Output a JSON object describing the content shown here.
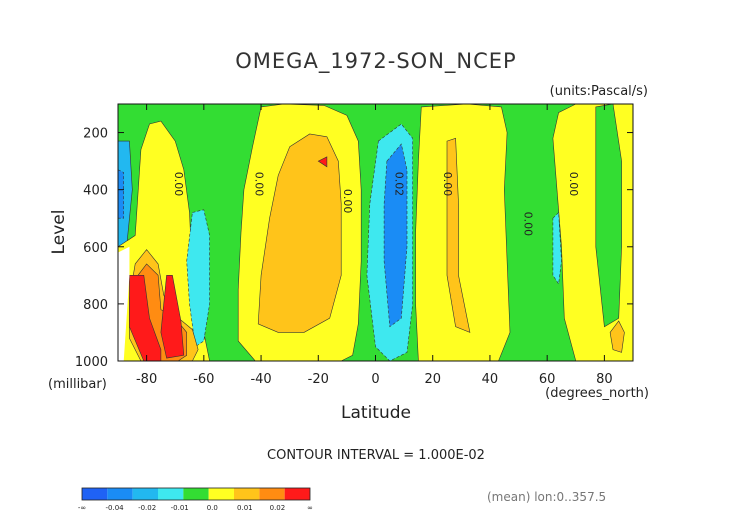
{
  "chart_data": {
    "type": "heatmap",
    "title": "OMEGA_1972-SON_NCEP",
    "units_note": "(units:Pascal/s)",
    "xlabel": "Latitude",
    "ylabel": "Level",
    "x_unit": "(degrees_north)",
    "y_unit": "(millibar)",
    "xlim": [
      -90,
      90
    ],
    "ylim": [
      1000,
      100
    ],
    "x_ticks": [
      -80,
      -60,
      -40,
      -20,
      0,
      20,
      40,
      60,
      80
    ],
    "y_ticks": [
      200,
      400,
      600,
      800,
      1000
    ],
    "contour_interval_text": "CONTOUR INTERVAL = 1.000E-02",
    "footnote": "(mean) lon:0..357.5",
    "colorbar": {
      "labels": [
        "-∞",
        "-0.04",
        "-0.02",
        "-0.01",
        "0.0",
        "0.01",
        "0.02",
        "∞"
      ],
      "colors": [
        "#1f62f5",
        "#1a8cf5",
        "#22b8f0",
        "#3ee8ef",
        "#33dd33",
        "#ffff22",
        "#ffc41a",
        "#ff8c12",
        "#ff1a1a"
      ]
    },
    "contour_labels": [
      {
        "text": "0.00",
        "lat": -70,
        "p": 380
      },
      {
        "text": "0.00",
        "lat": -42,
        "p": 380
      },
      {
        "text": "0.00",
        "lat": -11,
        "p": 440
      },
      {
        "text": "0.02",
        "lat": 7,
        "p": 380
      },
      {
        "text": "0.00",
        "lat": 24,
        "p": 380
      },
      {
        "text": "0.00",
        "lat": 52,
        "p": 520
      },
      {
        "text": "0.00",
        "lat": 68,
        "p": 380
      }
    ],
    "regions": [
      {
        "level": "-0.01",
        "color": "#22b8f0",
        "pts": [
          [
            -90,
            230
          ],
          [
            -86,
            230
          ],
          [
            -85,
            400
          ],
          [
            -87,
            600
          ],
          [
            -90,
            600
          ]
        ]
      },
      {
        "level": "-0.02",
        "color": "#1a8cf5",
        "pts": [
          [
            -90,
            330
          ],
          [
            -88,
            340
          ],
          [
            -88,
            500
          ],
          [
            -90,
            500
          ]
        ]
      },
      {
        "level": "0.0",
        "color": "#ffff22",
        "pts": [
          [
            -82,
            260
          ],
          [
            -79,
            170
          ],
          [
            -75,
            160
          ],
          [
            -70,
            230
          ],
          [
            -67,
            330
          ],
          [
            -65,
            480
          ],
          [
            -64,
            700
          ],
          [
            -60,
            900
          ],
          [
            -58,
            1000
          ],
          [
            -90,
            1000
          ],
          [
            -90,
            600
          ],
          [
            -84,
            560
          ]
        ]
      },
      {
        "level": "-0.01",
        "color": "#3ee8ef",
        "pts": [
          [
            -64,
            480
          ],
          [
            -60,
            470
          ],
          [
            -58,
            560
          ],
          [
            -58,
            800
          ],
          [
            -60,
            930
          ],
          [
            -63,
            950
          ],
          [
            -65,
            800
          ],
          [
            -66,
            650
          ]
        ]
      },
      {
        "level": "0.0",
        "color": "#ffff22",
        "pts": [
          [
            -40,
            110
          ],
          [
            -32,
            100
          ],
          [
            -18,
            105
          ],
          [
            -10,
            140
          ],
          [
            -6,
            230
          ],
          [
            -5,
            400
          ],
          [
            -5,
            650
          ],
          [
            -6,
            870
          ],
          [
            -8,
            980
          ],
          [
            -12,
            1000
          ],
          [
            -42,
            1000
          ],
          [
            -48,
            930
          ],
          [
            -48,
            750
          ],
          [
            -47,
            550
          ],
          [
            -46,
            400
          ],
          [
            -43,
            250
          ]
        ]
      },
      {
        "level": "0.01",
        "color": "#ffc41a",
        "pts": [
          [
            -30,
            250
          ],
          [
            -23,
            205
          ],
          [
            -17,
            215
          ],
          [
            -13,
            300
          ],
          [
            -12,
            450
          ],
          [
            -12,
            700
          ],
          [
            -16,
            850
          ],
          [
            -25,
            900
          ],
          [
            -34,
            900
          ],
          [
            -41,
            870
          ],
          [
            -40,
            700
          ],
          [
            -37,
            500
          ],
          [
            -34,
            350
          ]
        ]
      },
      {
        "level": "0.02",
        "color": "#ff1a1a",
        "pts": [
          [
            -20,
            300
          ],
          [
            -17,
            285
          ],
          [
            -17,
            320
          ]
        ]
      },
      {
        "level": "0.0",
        "color": "#ffff22",
        "pts": [
          [
            16,
            110
          ],
          [
            32,
            100
          ],
          [
            44,
            110
          ],
          [
            46,
            200
          ],
          [
            45,
            400
          ],
          [
            46,
            650
          ],
          [
            47,
            900
          ],
          [
            43,
            1000
          ],
          [
            15,
            1000
          ],
          [
            14,
            800
          ],
          [
            14,
            550
          ],
          [
            15,
            300
          ]
        ]
      },
      {
        "level": "0.01",
        "color": "#ffc41a",
        "pts": [
          [
            25,
            230
          ],
          [
            28,
            220
          ],
          [
            29,
            450
          ],
          [
            29,
            700
          ],
          [
            33,
            900
          ],
          [
            28,
            880
          ],
          [
            25,
            700
          ],
          [
            25,
            400
          ]
        ]
      },
      {
        "level": "-0.01",
        "color": "#3ee8ef",
        "pts": [
          [
            1,
            230
          ],
          [
            9,
            170
          ],
          [
            13,
            220
          ],
          [
            13,
            500
          ],
          [
            13,
            800
          ],
          [
            11,
            970
          ],
          [
            5,
            1000
          ],
          [
            0,
            950
          ],
          [
            -3,
            700
          ],
          [
            -2,
            450
          ]
        ]
      },
      {
        "level": "-0.02",
        "color": "#1a8cf5",
        "pts": [
          [
            4,
            300
          ],
          [
            9,
            240
          ],
          [
            11,
            330
          ],
          [
            11,
            600
          ],
          [
            9,
            850
          ],
          [
            5,
            880
          ],
          [
            3,
            650
          ],
          [
            3,
            450
          ]
        ]
      },
      {
        "level": "0.0",
        "color": "#ffff22",
        "pts": [
          [
            62,
            220
          ],
          [
            64,
            130
          ],
          [
            70,
            100
          ],
          [
            90,
            100
          ],
          [
            90,
            1000
          ],
          [
            70,
            1000
          ],
          [
            66,
            850
          ],
          [
            65,
            600
          ]
        ]
      },
      {
        "level": "-0.01",
        "color": "#3ee8ef",
        "pts": [
          [
            62,
            500
          ],
          [
            64,
            480
          ],
          [
            65,
            650
          ],
          [
            64,
            730
          ],
          [
            62,
            700
          ]
        ]
      },
      {
        "level": "0.0",
        "color": "#33dd33",
        "pts": [
          [
            77,
            110
          ],
          [
            83,
            100
          ],
          [
            86,
            300
          ],
          [
            86,
            600
          ],
          [
            85,
            850
          ],
          [
            80,
            880
          ],
          [
            77,
            600
          ],
          [
            77,
            300
          ]
        ]
      },
      {
        "level": "0.01",
        "color": "#ffc41a",
        "pts": [
          [
            82,
            900
          ],
          [
            85,
            860
          ],
          [
            87,
            900
          ],
          [
            86,
            970
          ],
          [
            83,
            960
          ]
        ]
      },
      {
        "level": "0.01",
        "color": "#ffc41a",
        "pts": [
          [
            -82,
            1000
          ],
          [
            -86,
            920
          ],
          [
            -86,
            780
          ],
          [
            -84,
            660
          ],
          [
            -80,
            610
          ],
          [
            -76,
            660
          ],
          [
            -74,
            770
          ],
          [
            -70,
            840
          ],
          [
            -64,
            890
          ],
          [
            -62,
            960
          ],
          [
            -64,
            1000
          ]
        ]
      },
      {
        "level": "0.02",
        "color": "#ff8c12",
        "pts": [
          [
            -79,
            1000
          ],
          [
            -86,
            860
          ],
          [
            -83,
            700
          ],
          [
            -80,
            660
          ],
          [
            -76,
            700
          ],
          [
            -75,
            820
          ],
          [
            -70,
            850
          ],
          [
            -66,
            900
          ],
          [
            -66,
            980
          ],
          [
            -69,
            1000
          ]
        ]
      },
      {
        "level": "∞",
        "color": "#ff1a1a",
        "pts": [
          [
            -81,
            1000
          ],
          [
            -86,
            880
          ],
          [
            -86,
            700
          ],
          [
            -81,
            700
          ],
          [
            -79,
            850
          ],
          [
            -75,
            960
          ],
          [
            -75,
            1000
          ]
        ]
      },
      {
        "level": "∞",
        "color": "#ff1a1a",
        "pts": [
          [
            -73,
            990
          ],
          [
            -75,
            900
          ],
          [
            -73,
            700
          ],
          [
            -71,
            700
          ],
          [
            -68,
            860
          ],
          [
            -67,
            980
          ]
        ]
      }
    ]
  }
}
